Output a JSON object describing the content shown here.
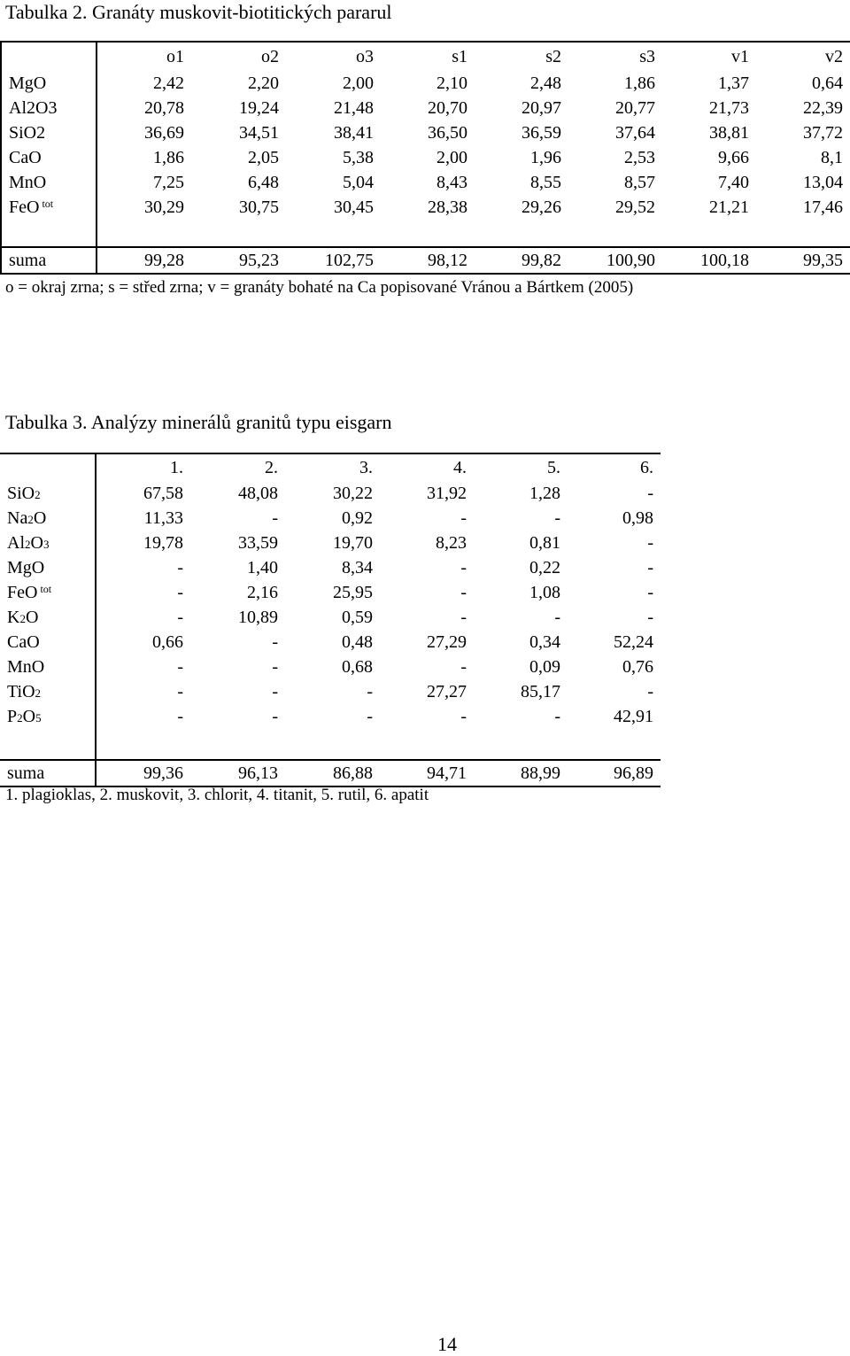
{
  "table2": {
    "title": "Tabulka 2. Granáty muskovit-biotitických pararul",
    "columns": [
      "o1",
      "o2",
      "o3",
      "s1",
      "s2",
      "s3",
      "v1",
      "v2"
    ],
    "rows": [
      {
        "label": "MgO",
        "sup": "",
        "values": [
          "2,42",
          "2,20",
          "2,00",
          "2,10",
          "2,48",
          "1,86",
          "1,37",
          "0,64"
        ]
      },
      {
        "label": "Al2O3",
        "sup": "",
        "values": [
          "20,78",
          "19,24",
          "21,48",
          "20,70",
          "20,97",
          "20,77",
          "21,73",
          "22,39"
        ]
      },
      {
        "label": "SiO2",
        "sup": "",
        "values": [
          "36,69",
          "34,51",
          "38,41",
          "36,50",
          "36,59",
          "37,64",
          "38,81",
          "37,72"
        ]
      },
      {
        "label": "CaO",
        "sup": "",
        "values": [
          "1,86",
          "2,05",
          "5,38",
          "2,00",
          "1,96",
          "2,53",
          "9,66",
          "8,1"
        ]
      },
      {
        "label": "MnO",
        "sup": "",
        "values": [
          "7,25",
          "6,48",
          "5,04",
          "8,43",
          "8,55",
          "8,57",
          "7,40",
          "13,04"
        ]
      },
      {
        "label": "FeO",
        "sup": "tot",
        "values": [
          "30,29",
          "30,75",
          "30,45",
          "28,38",
          "29,26",
          "29,52",
          "21,21",
          "17,46"
        ]
      }
    ],
    "sum": {
      "label": "suma",
      "values": [
        "99,28",
        "95,23",
        "102,75",
        "98,12",
        "99,82",
        "100,90",
        "100,18",
        "99,35"
      ]
    },
    "note": "o = okraj zrna; s = střed zrna; v = granáty bohaté na Ca popisované Vránou a Bártkem (2005)"
  },
  "table3": {
    "title": "Tabulka 3. Analýzy minerálů granitů typu eisgarn",
    "columns": [
      "1.",
      "2.",
      "3.",
      "4.",
      "5.",
      "6."
    ],
    "rows": [
      {
        "parts": [
          "SiO",
          "2",
          ""
        ],
        "values": [
          "67,58",
          "48,08",
          "30,22",
          "31,92",
          "1,28",
          "-"
        ]
      },
      {
        "parts": [
          "Na",
          "2",
          "O"
        ],
        "values": [
          "11,33",
          "-",
          "0,92",
          "-",
          "-",
          "0,98"
        ]
      },
      {
        "parts": [
          "Al",
          "2",
          "O",
          "3"
        ],
        "values": [
          "19,78",
          "33,59",
          "19,70",
          "8,23",
          "0,81",
          "-"
        ]
      },
      {
        "parts": [
          "MgO",
          "",
          ""
        ],
        "values": [
          "-",
          "1,40",
          "8,34",
          "-",
          "0,22",
          "-"
        ]
      },
      {
        "parts": [
          "FeO",
          "",
          ""
        ],
        "sup": "tot",
        "values": [
          "-",
          "2,16",
          "25,95",
          "-",
          "1,08",
          "-"
        ]
      },
      {
        "parts": [
          "K",
          "2",
          "O"
        ],
        "values": [
          "-",
          "10,89",
          "0,59",
          "-",
          "-",
          "-"
        ]
      },
      {
        "parts": [
          "CaO",
          "",
          ""
        ],
        "values": [
          "0,66",
          "-",
          "0,48",
          "27,29",
          "0,34",
          "52,24"
        ]
      },
      {
        "parts": [
          "MnO",
          "",
          ""
        ],
        "values": [
          "-",
          "-",
          "0,68",
          "-",
          "0,09",
          "0,76"
        ]
      },
      {
        "parts": [
          "TiO",
          "2",
          ""
        ],
        "values": [
          "-",
          "-",
          "-",
          "27,27",
          "85,17",
          "-"
        ]
      },
      {
        "parts": [
          "P",
          "2",
          "O",
          "5"
        ],
        "values": [
          "-",
          "-",
          "-",
          "-",
          "-",
          "42,91"
        ]
      }
    ],
    "sum": {
      "label": "suma",
      "values": [
        "99,36",
        "96,13",
        "86,88",
        "94,71",
        "88,99",
        "96,89"
      ]
    },
    "note": "1. plagioklas, 2. muskovit, 3. chlorit, 4. titanit, 5. rutil, 6. apatit"
  },
  "page_number": "14"
}
